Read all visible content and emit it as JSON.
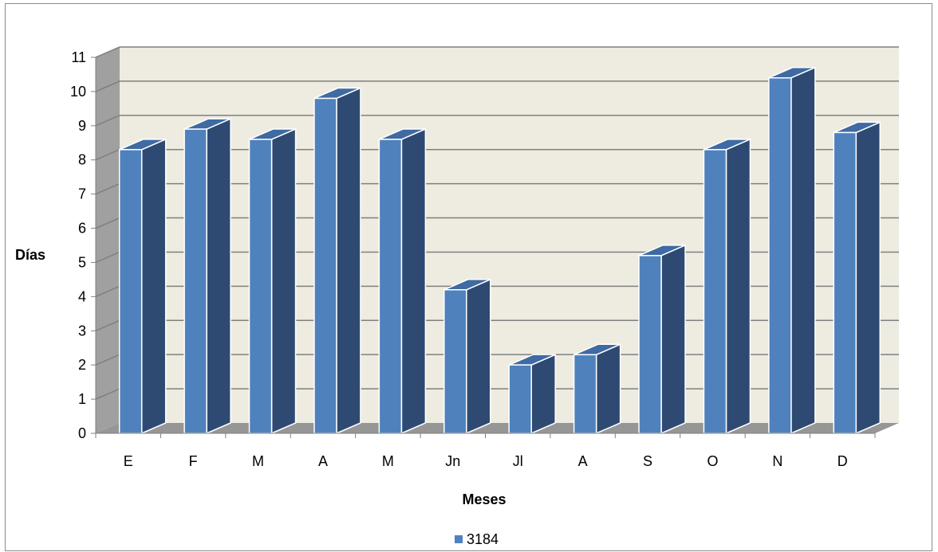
{
  "chart_data": {
    "type": "bar",
    "style": "3d-column",
    "categories": [
      "E",
      "F",
      "M",
      "A",
      "M",
      "Jn",
      "Jl",
      "A",
      "S",
      "O",
      "N",
      "D"
    ],
    "series": [
      {
        "name": "3184",
        "values": [
          8.3,
          8.9,
          8.6,
          9.8,
          8.6,
          4.2,
          2.0,
          2.3,
          5.2,
          8.3,
          10.4,
          8.8
        ],
        "color": "#4f81bd"
      }
    ],
    "xlabel": "Meses",
    "ylabel": "Días",
    "ylim": [
      0,
      11
    ],
    "yticks": [
      0,
      1,
      2,
      3,
      4,
      5,
      6,
      7,
      8,
      9,
      10,
      11
    ],
    "grid": true,
    "legend": "bottom",
    "colors": {
      "front": "#4f81bd",
      "side": "#2e4a72",
      "top": "#3f6aa3",
      "wall": "#eeece1",
      "side_wall": "#a0a0a0",
      "floor": "#969696",
      "gridline": "#7f7f7f"
    }
  }
}
